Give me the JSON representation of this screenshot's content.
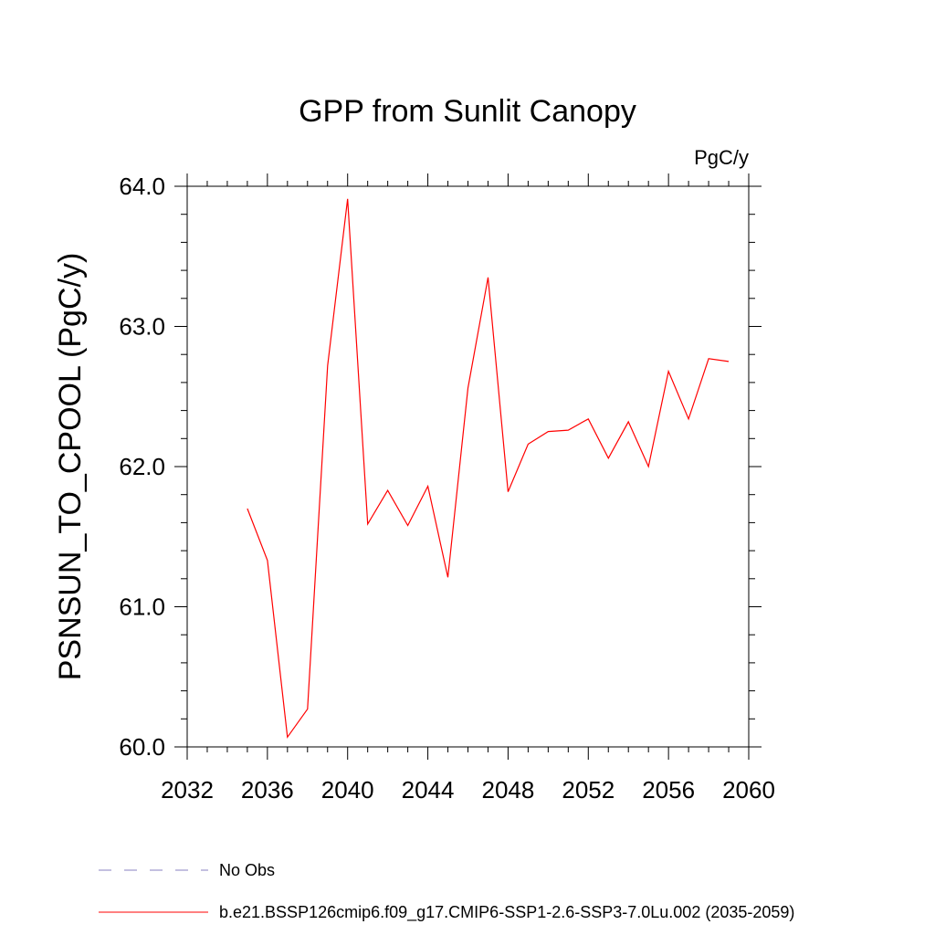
{
  "chart_data": {
    "type": "line",
    "title": "GPP from Sunlit Canopy",
    "units_label": "PgC/y",
    "xlabel": "",
    "ylabel": "PSNSUN_TO_CPOOL  (PgC/y)",
    "xlim": [
      2032,
      2060
    ],
    "ylim": [
      60.0,
      64.0
    ],
    "x_ticks": [
      2032,
      2036,
      2040,
      2044,
      2048,
      2052,
      2056,
      2060
    ],
    "x_tick_labels": [
      "2032",
      "2036",
      "2040",
      "2044",
      "2048",
      "2052",
      "2056",
      "2060"
    ],
    "y_ticks": [
      60.0,
      61.0,
      62.0,
      63.0,
      64.0
    ],
    "y_tick_labels": [
      "60.0",
      "61.0",
      "62.0",
      "63.0",
      "64.0"
    ],
    "grid": false,
    "legend_placement": "bottom-left, below plot",
    "series": [
      {
        "name": "b.e21.BSSP126cmip6.f09_g17.CMIP6-SSP1-2.6-SSP3-7.0Lu.002 (2035-2059)",
        "color": "#ff0000",
        "style": "solid",
        "x": [
          2035,
          2036,
          2037,
          2038,
          2039,
          2040,
          2041,
          2042,
          2043,
          2044,
          2045,
          2046,
          2047,
          2048,
          2049,
          2050,
          2051,
          2052,
          2053,
          2054,
          2055,
          2056,
          2057,
          2058,
          2059
        ],
        "y": [
          61.7,
          61.33,
          60.07,
          60.27,
          62.72,
          63.91,
          61.59,
          61.83,
          61.58,
          61.86,
          61.21,
          62.56,
          63.35,
          61.82,
          62.16,
          62.25,
          62.26,
          62.34,
          62.06,
          62.32,
          62.0,
          62.68,
          62.34,
          62.77,
          62.75
        ]
      }
    ],
    "legend": [
      {
        "label": "No Obs",
        "color": "#8a80c0",
        "style": "dashed"
      },
      {
        "label": "b.e21.BSSP126cmip6.f09_g17.CMIP6-SSP1-2.6-SSP3-7.0Lu.002 (2035-2059)",
        "color": "#ff0000",
        "style": "solid"
      }
    ]
  }
}
